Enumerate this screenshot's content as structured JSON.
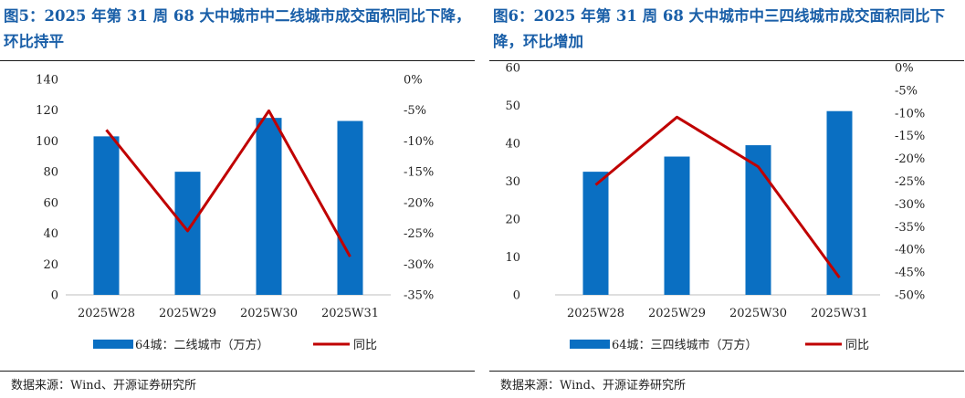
{
  "chart_data": [
    {
      "type": "bar+line",
      "title": "图5：2025 年第 31 周 68 大中城市中二线城市成交面积同比下降，环比持平",
      "categories": [
        "2025W28",
        "2025W29",
        "2025W30",
        "2025W31"
      ],
      "series": [
        {
          "name": "64城：二线城市（万方）",
          "kind": "bar",
          "axis": "left",
          "color": "#0a6fc2",
          "values": [
            103,
            80,
            115,
            113
          ]
        },
        {
          "name": "同比",
          "kind": "line",
          "axis": "right",
          "color": "#c00000",
          "values": [
            -8.2,
            -24.6,
            -5.1,
            -28.8
          ]
        }
      ],
      "left_axis": {
        "min": 0,
        "max": 140,
        "step": 20,
        "ticks": [
          "0",
          "20",
          "40",
          "60",
          "80",
          "100",
          "120",
          "140"
        ]
      },
      "right_axis": {
        "min": -35,
        "max": 0,
        "step": 5,
        "ticks": [
          "-35%",
          "-30%",
          "-25%",
          "-20%",
          "-15%",
          "-10%",
          "-5%",
          "0%"
        ]
      },
      "legend": [
        "64城：二线城市（万方）",
        "同比"
      ],
      "legend_position": "bottom",
      "grid": false,
      "source": "数据来源：Wind、开源证券研究所"
    },
    {
      "type": "bar+line",
      "title": "图6：2025 年第 31 周 68 大中城市中三四线城市成交面积同比下降，环比增加",
      "categories": [
        "2025W28",
        "2025W29",
        "2025W30",
        "2025W31"
      ],
      "series": [
        {
          "name": "64城：三四线城市（万方）",
          "kind": "bar",
          "axis": "left",
          "color": "#0a6fc2",
          "values": [
            32.5,
            36.5,
            39.5,
            48.5
          ]
        },
        {
          "name": "同比",
          "kind": "line",
          "axis": "right",
          "color": "#c00000",
          "values": [
            -25.8,
            -10.9,
            -21.8,
            -46.2
          ]
        }
      ],
      "left_axis": {
        "min": 0,
        "max": 60,
        "step": 10,
        "ticks": [
          "0",
          "10",
          "20",
          "30",
          "40",
          "50",
          "60"
        ]
      },
      "right_axis": {
        "min": -50,
        "max": 0,
        "step": 5,
        "ticks": [
          "-50%",
          "-45%",
          "-40%",
          "-35%",
          "-30%",
          "-25%",
          "-20%",
          "-15%",
          "-10%",
          "-5%",
          "0%"
        ]
      },
      "legend": [
        "64城：三四线城市（万方）",
        "同比"
      ],
      "legend_position": "bottom",
      "grid": false,
      "source": "数据来源：Wind、开源证券研究所"
    }
  ]
}
